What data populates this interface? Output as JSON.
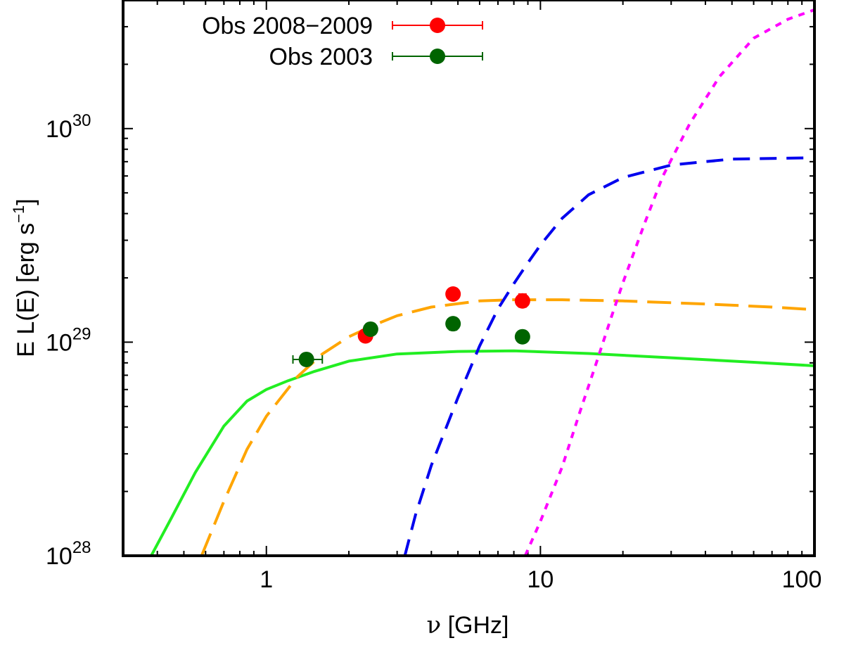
{
  "chart_data": {
    "type": "line",
    "xscale": "log",
    "yscale": "log",
    "xlim": [
      0.3,
      100
    ],
    "ylim": [
      1e+28,
      4e+30
    ],
    "xlabel_symbol": "ν",
    "xlabel_text": " [GHz]",
    "ylabel_main": "E L(E) [erg s",
    "ylabel_sup": "−1",
    "ylabel_close": "]",
    "xticks": [
      {
        "value": 1,
        "label": "1"
      },
      {
        "value": 10,
        "label": "10"
      },
      {
        "value": 100,
        "label": "100"
      }
    ],
    "yticks": [
      {
        "value": 1e+28,
        "base": "10",
        "exp": "28"
      },
      {
        "value": 1e+29,
        "base": "10",
        "exp": "29"
      },
      {
        "value": 1e+30,
        "base": "10",
        "exp": "30"
      }
    ],
    "legend_position": "top-left",
    "points": [
      {
        "name": "Obs 2008-2009",
        "label": "Obs 2008−2009",
        "color": "#ff0000",
        "data": [
          {
            "x": 2.3,
            "y": 1.07e+29,
            "yerr": [
              1.02e+29,
              1.12e+29
            ]
          },
          {
            "x": 4.8,
            "y": 1.68e+29,
            "yerr": [
              1.62e+29,
              1.74e+29
            ]
          },
          {
            "x": 8.6,
            "y": 1.56e+29,
            "yerr": [
              1.46e+29,
              1.68e+29
            ]
          }
        ]
      },
      {
        "name": "Obs 2003",
        "label": "Obs 2003",
        "color": "#006400",
        "data": [
          {
            "x": 1.4,
            "y": 8.3e+28,
            "xerr": [
              1.25,
              1.6
            ],
            "yerr": [
              7.9e+28,
              8.7e+28
            ]
          },
          {
            "x": 2.4,
            "y": 1.15e+29,
            "yerr": [
              1.11e+29,
              1.19e+29
            ]
          },
          {
            "x": 4.8,
            "y": 1.22e+29,
            "yerr": [
              1.14e+29,
              1.3e+29
            ]
          },
          {
            "x": 8.6,
            "y": 1.06e+29,
            "yerr": [
              1e+29,
              1.12e+29
            ]
          }
        ]
      }
    ],
    "series": [
      {
        "name": "green-solid",
        "color": "#22ee22",
        "dash": "solid",
        "x": [
          0.38,
          0.45,
          0.55,
          0.7,
          0.85,
          1.0,
          1.2,
          1.5,
          2.0,
          3.0,
          5.0,
          8.0,
          15,
          30,
          60,
          100
        ],
        "y": [
          1e+28,
          1.5e+28,
          2.45e+28,
          4.05e+28,
          5.3e+28,
          6e+28,
          6.6e+28,
          7.3e+28,
          8.15e+28,
          8.8e+28,
          9.05e+28,
          9.1e+28,
          8.85e+28,
          8.45e+28,
          8.05e+28,
          7.75e+28
        ]
      },
      {
        "name": "orange-dashed",
        "color": "#ffa500",
        "dash": "long",
        "x": [
          0.58,
          0.7,
          0.85,
          1.0,
          1.3,
          1.6,
          2.0,
          2.5,
          3.0,
          4.0,
          6.0,
          8.0,
          12,
          20,
          40,
          70,
          100
        ],
        "y": [
          1e+28,
          1.8e+28,
          3.15e+28,
          4.5e+28,
          6.9e+28,
          8.8e+28,
          1.06e+29,
          1.21e+29,
          1.33e+29,
          1.46e+29,
          1.56e+29,
          1.58e+29,
          1.58e+29,
          1.56e+29,
          1.51e+29,
          1.46e+29,
          1.42e+29
        ]
      },
      {
        "name": "blue-dashed",
        "color": "#0000ee",
        "dash": "medium",
        "x": [
          3.2,
          3.5,
          4.0,
          5.0,
          6.0,
          7.0,
          8.0,
          9.0,
          10,
          12,
          15,
          20,
          30,
          50,
          100
        ],
        "y": [
          1e+28,
          1.55e+28,
          2.65e+28,
          5.5e+28,
          9.6e+28,
          1.43e+29,
          1.88e+29,
          2.35e+29,
          2.85e+29,
          3.8e+29,
          4.9e+29,
          5.9e+29,
          6.75e+29,
          7.2e+29,
          7.3e+29
        ]
      },
      {
        "name": "magenta-dotted",
        "color": "#ff00ff",
        "dash": "dotted",
        "x": [
          8.8,
          10,
          12,
          14,
          16,
          18,
          20,
          24,
          28,
          35,
          45,
          60,
          80,
          100
        ],
        "y": [
          1e+28,
          1.45e+28,
          2.6e+28,
          4.8e+28,
          8e+28,
          1.27e+29,
          1.9e+29,
          3.6e+29,
          6e+29,
          1.05e+30,
          1.75e+30,
          2.65e+30,
          3.25e+30,
          3.6e+30
        ]
      }
    ]
  }
}
